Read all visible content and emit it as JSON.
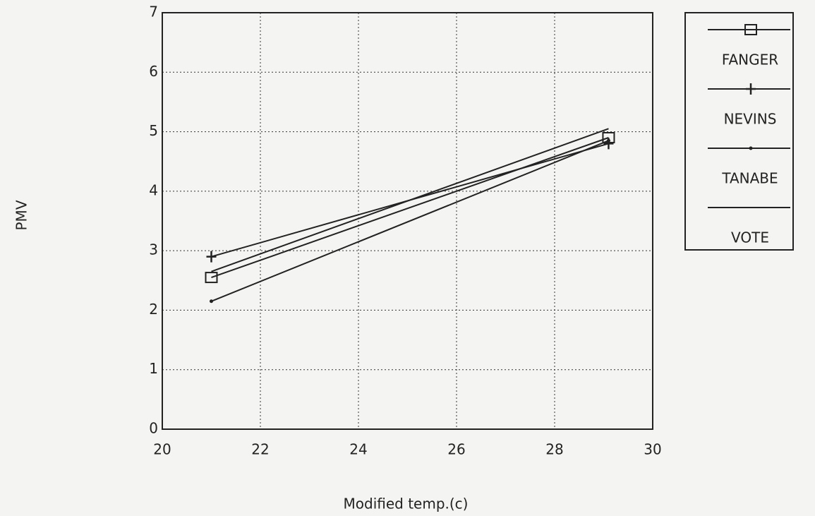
{
  "chart_data": {
    "type": "line",
    "x_label": "Modified temp.(c)",
    "y_label": "PMV",
    "x": [
      21,
      29.1
    ],
    "series": [
      {
        "name": "FANGER",
        "color": "#222222",
        "marker": "square",
        "values": [
          2.55,
          4.9
        ]
      },
      {
        "name": "NEVINS",
        "color": "#222222",
        "marker": "plus",
        "values": [
          2.9,
          4.8
        ]
      },
      {
        "name": "TANABE",
        "color": "#222222",
        "marker": "dot",
        "values": [
          2.15,
          4.85
        ]
      },
      {
        "name": "VOTE",
        "color": "#222222",
        "marker": "none",
        "values": [
          2.65,
          5.05
        ]
      }
    ],
    "xlim": [
      20,
      30
    ],
    "xticks": [
      20,
      22,
      24,
      26,
      28,
      30
    ],
    "ylim": [
      0,
      7
    ],
    "yticks": [
      0,
      1,
      2,
      3,
      4,
      5,
      6,
      7
    ],
    "grid": true,
    "legend": "right"
  }
}
